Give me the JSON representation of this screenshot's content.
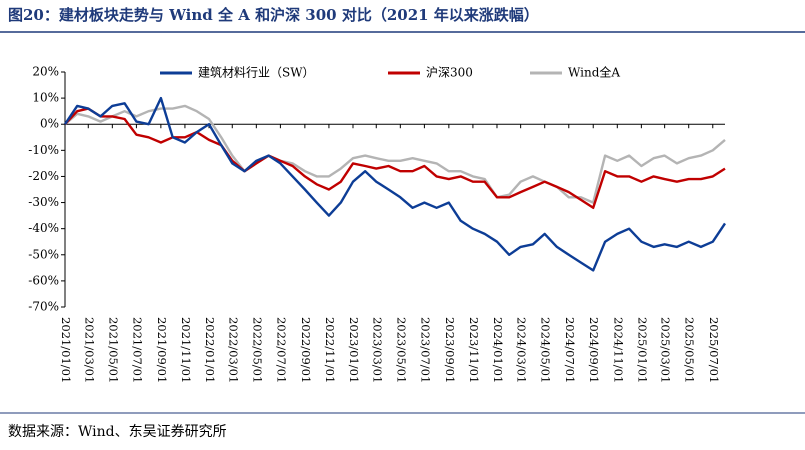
{
  "chart_data": {
    "type": "line",
    "title": "图20：建材板块走势与 Wind 全 A 和沪深 300 对比（2021 年以来涨跌幅）",
    "source": "数据来源：Wind、东吴证券研究所",
    "x": [
      "2021/01/01",
      "2021/02/01",
      "2021/03/01",
      "2021/04/01",
      "2021/05/01",
      "2021/06/01",
      "2021/07/01",
      "2021/08/01",
      "2021/09/01",
      "2021/10/01",
      "2021/11/01",
      "2021/12/01",
      "2022/01/01",
      "2022/02/01",
      "2022/03/01",
      "2022/04/01",
      "2022/05/01",
      "2022/06/01",
      "2022/07/01",
      "2022/08/01",
      "2022/09/01",
      "2022/10/01",
      "2022/11/01",
      "2022/12/01",
      "2023/01/01",
      "2023/02/01",
      "2023/03/01",
      "2023/04/01",
      "2023/05/01",
      "2023/06/01",
      "2023/07/01",
      "2023/08/01",
      "2023/09/01",
      "2023/10/01",
      "2023/11/01",
      "2023/12/01",
      "2024/01/01",
      "2024/02/01",
      "2024/03/01",
      "2024/04/01",
      "2024/05/01",
      "2024/06/01",
      "2024/07/01",
      "2024/08/01",
      "2024/09/01",
      "2024/10/01",
      "2024/11/01",
      "2024/12/01",
      "2025/01/01",
      "2025/02/01",
      "2025/03/01",
      "2025/04/01",
      "2025/05/01",
      "2025/06/01",
      "2025/07/01",
      "2025/08/01"
    ],
    "series": [
      {
        "name": "建筑材料行业（SW）",
        "color": "#0d3d96",
        "values": [
          0,
          7,
          6,
          3,
          7,
          8,
          1,
          0,
          10,
          -5,
          -7,
          -3,
          0,
          -8,
          -15,
          -18,
          -14,
          -12,
          -15,
          -20,
          -25,
          -30,
          -35,
          -30,
          -22,
          -18,
          -22,
          -25,
          -28,
          -32,
          -30,
          -32,
          -30,
          -37,
          -40,
          -42,
          -45,
          -50,
          -47,
          -46,
          -42,
          -47,
          -50,
          -53,
          -56,
          -45,
          -42,
          -40,
          -45,
          -47,
          -46,
          -47,
          -45,
          -47,
          -45,
          -38
        ]
      },
      {
        "name": "沪深300",
        "color": "#c00000",
        "values": [
          0,
          5,
          6,
          3,
          3,
          2,
          -4,
          -5,
          -7,
          -5,
          -5,
          -3,
          -6,
          -8,
          -14,
          -18,
          -15,
          -12,
          -14,
          -16,
          -20,
          -23,
          -25,
          -22,
          -15,
          -16,
          -17,
          -16,
          -18,
          -18,
          -16,
          -20,
          -21,
          -20,
          -22,
          -22,
          -28,
          -28,
          -26,
          -24,
          -22,
          -24,
          -26,
          -29,
          -32,
          -18,
          -20,
          -20,
          -22,
          -20,
          -21,
          -22,
          -21,
          -21,
          -20,
          -17
        ]
      },
      {
        "name": "Wind全A",
        "color": "#b4b4b4",
        "values": [
          0,
          4,
          3,
          1,
          3,
          5,
          3,
          5,
          6,
          6,
          7,
          5,
          2,
          -5,
          -12,
          -18,
          -15,
          -12,
          -14,
          -15,
          -18,
          -20,
          -20,
          -17,
          -13,
          -12,
          -13,
          -14,
          -14,
          -13,
          -14,
          -15,
          -18,
          -18,
          -20,
          -21,
          -28,
          -27,
          -22,
          -20,
          -22,
          -24,
          -28,
          -28,
          -30,
          -12,
          -14,
          -12,
          -16,
          -13,
          -12,
          -15,
          -13,
          -12,
          -10,
          -6
        ]
      }
    ],
    "xlim": [
      "2021/01/01",
      "2025/08/01"
    ],
    "xticks": [
      "2021/01/01",
      "2021/03/01",
      "2021/05/01",
      "2021/07/01",
      "2021/09/01",
      "2021/11/01",
      "2022/01/01",
      "2022/03/01",
      "2022/05/01",
      "2022/07/01",
      "2022/09/01",
      "2022/11/01",
      "2023/01/01",
      "2023/03/01",
      "2023/05/01",
      "2023/07/01",
      "2023/09/01",
      "2023/11/01",
      "2024/01/01",
      "2024/03/01",
      "2024/05/01",
      "2024/07/01",
      "2024/09/01",
      "2024/11/01",
      "2025/01/01",
      "2025/03/01",
      "2025/05/01",
      "2025/07/01"
    ],
    "ylim": [
      -70,
      20
    ],
    "yticks": [
      {
        "value": 20,
        "label": "20%"
      },
      {
        "value": 10,
        "label": "10%"
      },
      {
        "value": 0,
        "label": "0%"
      },
      {
        "value": -10,
        "label": "-10%"
      },
      {
        "value": -20,
        "label": "-20%"
      },
      {
        "value": -30,
        "label": "-30%"
      },
      {
        "value": -40,
        "label": "-40%"
      },
      {
        "value": -50,
        "label": "-50%"
      },
      {
        "value": -60,
        "label": "-60%"
      },
      {
        "value": -70,
        "label": "-70%"
      }
    ],
    "grid": false,
    "legend": "top"
  }
}
